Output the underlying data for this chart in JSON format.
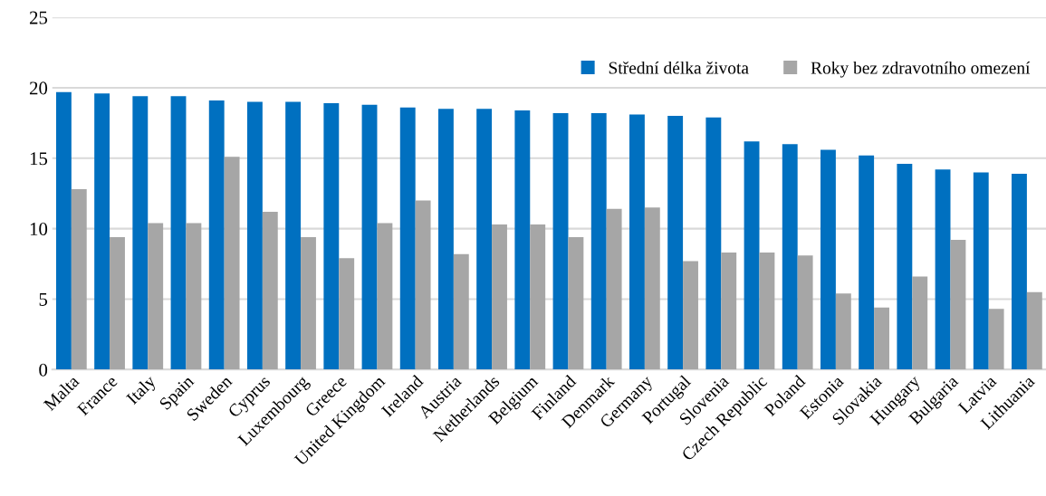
{
  "chart_data": {
    "type": "bar",
    "categories": [
      "Malta",
      "France",
      "Italy",
      "Spain",
      "Sweden",
      "Cyprus",
      "Luxembourg",
      "Greece",
      "United Kingdom",
      "Ireland",
      "Austria",
      "Netherlands",
      "Belgium",
      "Finland",
      "Denmark",
      "Germany",
      "Portugal",
      "Slovenia",
      "Czech Republic",
      "Poland",
      "Estonia",
      "Slovakia",
      "Hungary",
      "Bulgaria",
      "Latvia",
      "Lithuania"
    ],
    "series": [
      {
        "name": "Střední délka života",
        "color": "#0070c0",
        "values": [
          19.7,
          19.6,
          19.4,
          19.4,
          19.1,
          19.0,
          19.0,
          18.9,
          18.8,
          18.6,
          18.5,
          18.5,
          18.4,
          18.2,
          18.2,
          18.1,
          18.0,
          17.9,
          16.2,
          16.0,
          15.6,
          15.2,
          14.6,
          14.2,
          14.0,
          13.9
        ]
      },
      {
        "name": "Roky bez zdravotního omezení",
        "color": "#a6a6a6",
        "values": [
          12.8,
          9.4,
          10.4,
          10.4,
          15.1,
          11.2,
          9.4,
          7.9,
          10.4,
          12.0,
          8.2,
          10.3,
          10.3,
          9.4,
          11.4,
          11.5,
          7.7,
          8.3,
          8.3,
          8.1,
          5.4,
          4.4,
          6.6,
          9.2,
          4.3,
          5.5
        ]
      }
    ],
    "ylim": [
      0,
      25
    ],
    "yticks": [
      0,
      5,
      10,
      15,
      20,
      25
    ],
    "grid": "y",
    "legend": "top right"
  }
}
